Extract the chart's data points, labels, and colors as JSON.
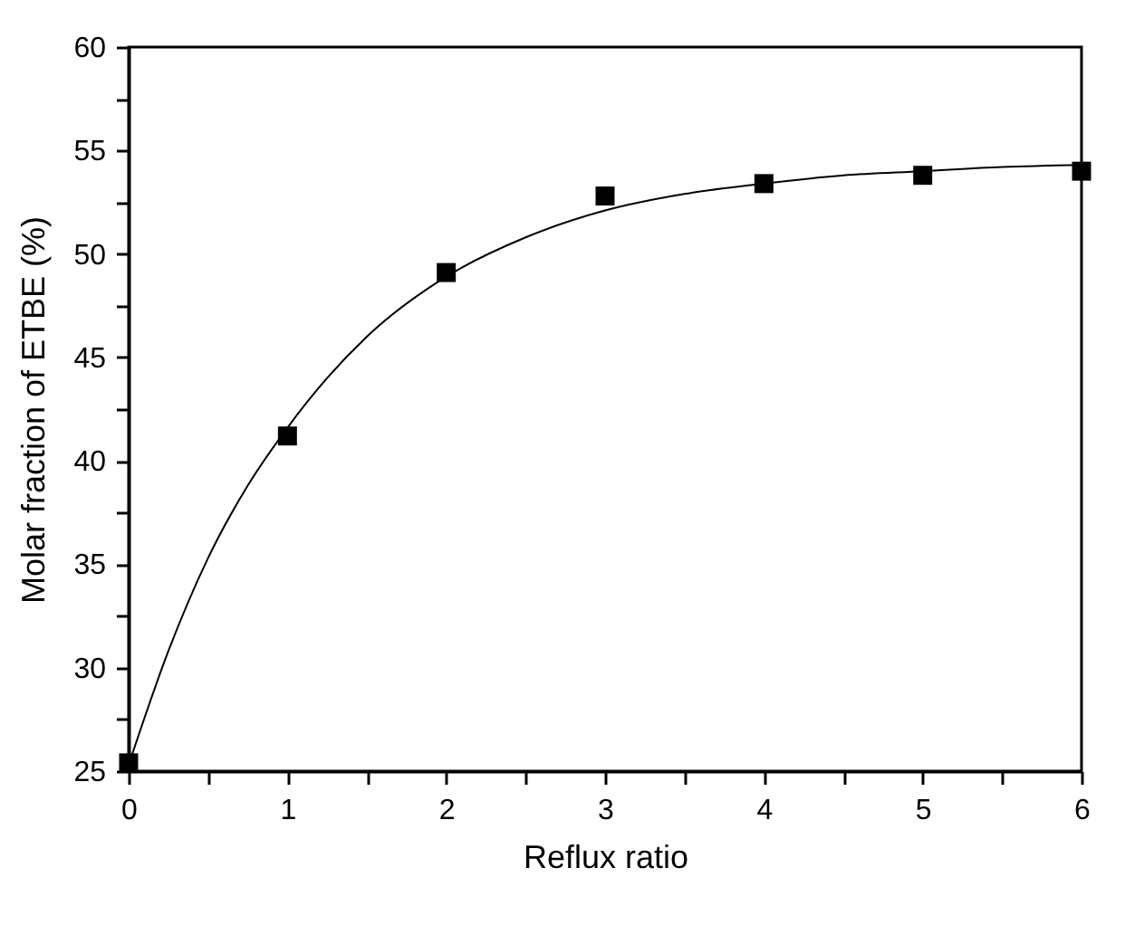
{
  "chart_data": {
    "type": "scatter",
    "xlabel": "Reflux ratio",
    "ylabel": "Molar fraction of ETBE (%)",
    "x": [
      0,
      1,
      2,
      3,
      4,
      5,
      6
    ],
    "series": [
      {
        "color": "#000000",
        "marker": "square",
        "values": [
          25.4,
          41.2,
          49.1,
          52.8,
          53.4,
          53.8,
          54.0
        ]
      },
      {
        "type": "line",
        "color": "#000000",
        "marker": "none",
        "line_style": "solid",
        "x": [
          0,
          0.25,
          0.5,
          0.75,
          1,
          1.25,
          1.5,
          2,
          2.5,
          3,
          3.5,
          4,
          4.5,
          5,
          5.5,
          6
        ],
        "values": [
          25.3,
          30.8,
          35.3,
          38.8,
          41.6,
          44.0,
          46.0,
          48.9,
          50.8,
          52.1,
          52.9,
          53.4,
          53.8,
          54.0,
          54.2,
          54.3
        ]
      }
    ],
    "xlim": [
      0,
      6
    ],
    "ylim": [
      25,
      60
    ],
    "xticks": [
      0,
      {
        "value": 0.5,
        "label": null
      },
      1,
      {
        "value": 1.5,
        "label": null
      },
      2,
      {
        "value": 2.5,
        "label": null
      },
      3,
      {
        "value": 3.5,
        "label": null
      },
      4,
      {
        "value": 4.5,
        "label": null
      },
      5,
      {
        "value": 5.5,
        "label": null
      },
      6
    ],
    "yticks": [
      25,
      {
        "value": 27.5,
        "label": null
      },
      30,
      {
        "value": 32.5,
        "label": null
      },
      35,
      {
        "value": 37.5,
        "label": null
      },
      40,
      {
        "value": 42.5,
        "label": null
      },
      45,
      {
        "value": 47.5,
        "label": null
      },
      50,
      {
        "value": 52.5,
        "label": null
      },
      55,
      {
        "value": 57.5,
        "label": null
      },
      60
    ],
    "grid": false
  }
}
